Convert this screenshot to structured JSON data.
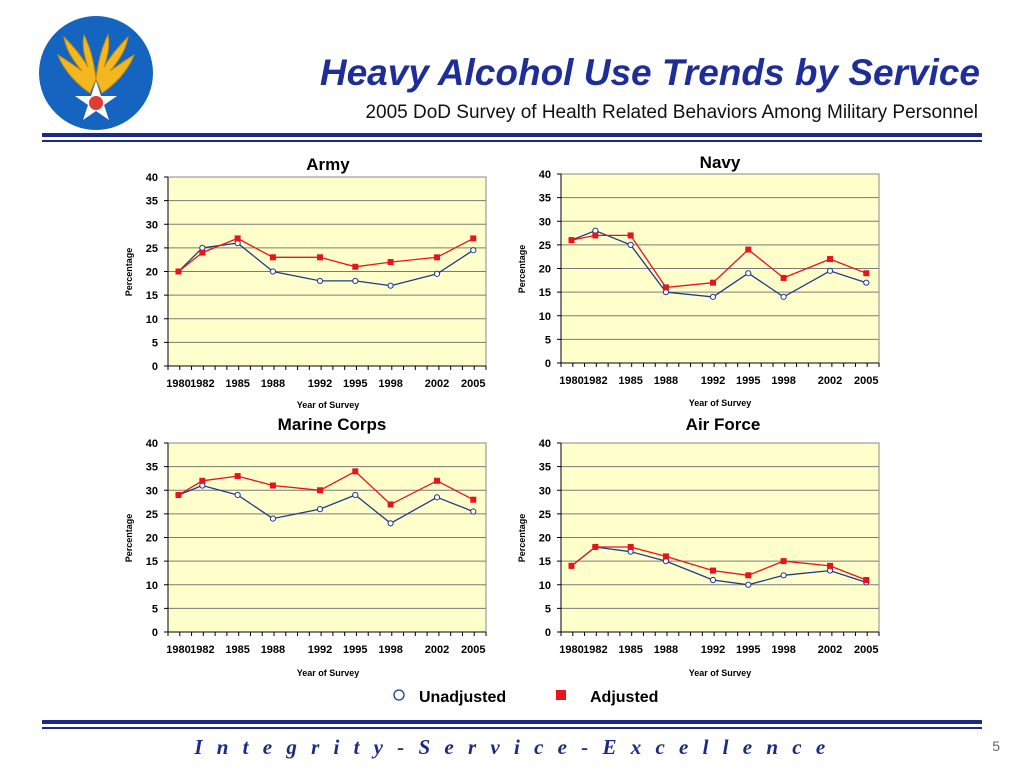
{
  "header": {
    "title": "Heavy Alcohol Use Trends by Service",
    "subtitle": "2005 DoD Survey of Health Related Behaviors Among Military Personnel"
  },
  "legend": {
    "unadjusted": "Unadjusted",
    "adjusted": "Adjusted"
  },
  "footer": {
    "motto": "I n t e g r i t y  -  S e r v i c e  -  E x c e l l e n c e",
    "page_number": "5"
  },
  "colors": {
    "plot_bg": "#ffffcc",
    "unadjusted_line": "#1f3a8a",
    "adjusted": "#e8141b",
    "title_blue": "#1f2e96",
    "rule_blue": "#1a2a86",
    "logo_circle": "#1565c0",
    "wings": "#f3b71f"
  },
  "chart_data": [
    {
      "type": "line",
      "title": "Army",
      "xlabel": "Year of Survey",
      "ylabel": "Percentage",
      "categories": [
        "1980",
        "1982",
        "1985",
        "1988",
        "1992",
        "1995",
        "1998",
        "2002",
        "2005"
      ],
      "ylim": [
        0,
        40
      ],
      "yticks": [
        0,
        5,
        10,
        15,
        20,
        25,
        30,
        35,
        40
      ],
      "grid": true,
      "series": [
        {
          "name": "Unadjusted",
          "marker": "open-circle",
          "values": [
            20,
            25,
            26,
            20,
            18,
            18,
            17,
            19.5,
            24.5
          ]
        },
        {
          "name": "Adjusted",
          "marker": "filled-square",
          "values": [
            20,
            24,
            27,
            23,
            23,
            21,
            22,
            23,
            27
          ]
        }
      ]
    },
    {
      "type": "line",
      "title": "Navy",
      "xlabel": "Year of Survey",
      "ylabel": "Percentage",
      "categories": [
        "1980",
        "1982",
        "1985",
        "1988",
        "1992",
        "1995",
        "1998",
        "2002",
        "2005"
      ],
      "ylim": [
        0,
        40
      ],
      "yticks": [
        0,
        5,
        10,
        15,
        20,
        25,
        30,
        35,
        40
      ],
      "grid": true,
      "series": [
        {
          "name": "Unadjusted",
          "marker": "open-circle",
          "values": [
            26,
            28,
            25,
            15,
            14,
            19,
            14,
            19.5,
            17
          ]
        },
        {
          "name": "Adjusted",
          "marker": "filled-square",
          "values": [
            26,
            27,
            27,
            16,
            17,
            24,
            18,
            22,
            19
          ]
        }
      ]
    },
    {
      "type": "line",
      "title": "Marine Corps",
      "xlabel": "Year of Survey",
      "ylabel": "Percentage",
      "categories": [
        "1980",
        "1982",
        "1985",
        "1988",
        "1992",
        "1995",
        "1998",
        "2002",
        "2005"
      ],
      "ylim": [
        0,
        40
      ],
      "yticks": [
        0,
        5,
        10,
        15,
        20,
        25,
        30,
        35,
        40
      ],
      "grid": true,
      "series": [
        {
          "name": "Unadjusted",
          "marker": "open-circle",
          "values": [
            29,
            31,
            29,
            24,
            26,
            29,
            23,
            28.5,
            25.5
          ]
        },
        {
          "name": "Adjusted",
          "marker": "filled-square",
          "values": [
            29,
            32,
            33,
            31,
            30,
            34,
            27,
            32,
            28
          ]
        }
      ]
    },
    {
      "type": "line",
      "title": "Air Force",
      "xlabel": "Year of Survey",
      "ylabel": "Percentage",
      "categories": [
        "1980",
        "1982",
        "1985",
        "1988",
        "1992",
        "1995",
        "1998",
        "2002",
        "2005"
      ],
      "ylim": [
        0,
        40
      ],
      "yticks": [
        0,
        5,
        10,
        15,
        20,
        25,
        30,
        35,
        40
      ],
      "grid": true,
      "series": [
        {
          "name": "Unadjusted",
          "marker": "open-circle",
          "values": [
            14,
            18,
            17,
            15,
            11,
            10,
            12,
            13,
            10.5
          ]
        },
        {
          "name": "Adjusted",
          "marker": "filled-square",
          "values": [
            14,
            18,
            18,
            16,
            13,
            12,
            15,
            14,
            11
          ]
        }
      ]
    }
  ]
}
